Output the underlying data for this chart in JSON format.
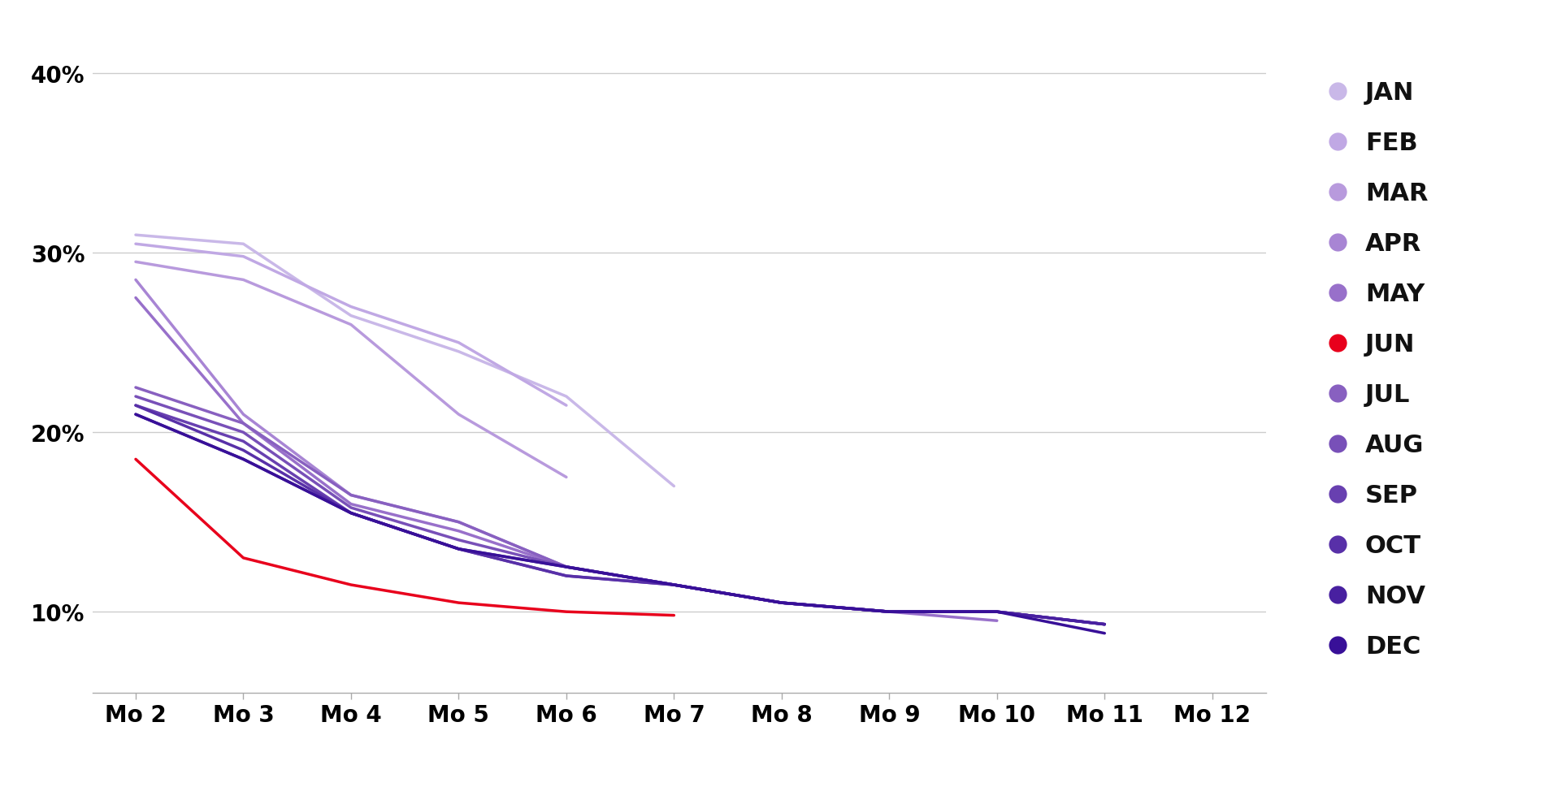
{
  "series": [
    {
      "label": "JAN",
      "color": "#c9b8e8",
      "data": [
        [
          2,
          0.31
        ],
        [
          3,
          0.305
        ],
        [
          4,
          0.265
        ],
        [
          5,
          0.245
        ],
        [
          6,
          0.22
        ],
        [
          7,
          0.17
        ]
      ]
    },
    {
      "label": "FEB",
      "color": "#c0a8e4",
      "data": [
        [
          2,
          0.305
        ],
        [
          3,
          0.298
        ],
        [
          4,
          0.27
        ],
        [
          5,
          0.25
        ],
        [
          6,
          0.215
        ]
      ]
    },
    {
      "label": "MAR",
      "color": "#b89add",
      "data": [
        [
          2,
          0.295
        ],
        [
          3,
          0.285
        ],
        [
          4,
          0.26
        ],
        [
          5,
          0.21
        ],
        [
          6,
          0.175
        ]
      ]
    },
    {
      "label": "APR",
      "color": "#a885d4",
      "data": [
        [
          2,
          0.285
        ],
        [
          3,
          0.21
        ],
        [
          4,
          0.165
        ],
        [
          5,
          0.15
        ],
        [
          6,
          0.125
        ],
        [
          7,
          0.115
        ],
        [
          8,
          0.105
        ],
        [
          9,
          0.1
        ]
      ]
    },
    {
      "label": "MAY",
      "color": "#9870ca",
      "data": [
        [
          2,
          0.275
        ],
        [
          3,
          0.205
        ],
        [
          4,
          0.16
        ],
        [
          5,
          0.145
        ],
        [
          6,
          0.125
        ],
        [
          7,
          0.115
        ],
        [
          8,
          0.105
        ],
        [
          9,
          0.1
        ],
        [
          10,
          0.095
        ]
      ]
    },
    {
      "label": "JUN",
      "color": "#e8001c",
      "data": [
        [
          2,
          0.185
        ],
        [
          3,
          0.13
        ],
        [
          4,
          0.115
        ],
        [
          5,
          0.105
        ],
        [
          6,
          0.1
        ],
        [
          7,
          0.098
        ]
      ]
    },
    {
      "label": "JUL",
      "color": "#8860c0",
      "data": [
        [
          2,
          0.225
        ],
        [
          3,
          0.205
        ],
        [
          4,
          0.165
        ],
        [
          5,
          0.15
        ],
        [
          6,
          0.125
        ],
        [
          7,
          0.115
        ],
        [
          8,
          0.105
        ],
        [
          9,
          0.1
        ],
        [
          10,
          0.1
        ],
        [
          11,
          0.093
        ]
      ]
    },
    {
      "label": "AUG",
      "color": "#7850b8",
      "data": [
        [
          2,
          0.22
        ],
        [
          3,
          0.2
        ],
        [
          4,
          0.158
        ],
        [
          5,
          0.14
        ],
        [
          6,
          0.125
        ],
        [
          7,
          0.115
        ],
        [
          8,
          0.105
        ],
        [
          9,
          0.1
        ],
        [
          10,
          0.1
        ],
        [
          11,
          0.093
        ]
      ]
    },
    {
      "label": "SEP",
      "color": "#6840b0",
      "data": [
        [
          2,
          0.215
        ],
        [
          3,
          0.195
        ],
        [
          4,
          0.155
        ],
        [
          5,
          0.135
        ],
        [
          6,
          0.12
        ],
        [
          7,
          0.115
        ],
        [
          8,
          0.105
        ],
        [
          9,
          0.1
        ],
        [
          10,
          0.1
        ],
        [
          11,
          0.093
        ]
      ]
    },
    {
      "label": "OCT",
      "color": "#5830a8",
      "data": [
        [
          2,
          0.215
        ],
        [
          3,
          0.19
        ],
        [
          4,
          0.155
        ],
        [
          5,
          0.135
        ],
        [
          6,
          0.12
        ],
        [
          7,
          0.115
        ],
        [
          8,
          0.105
        ],
        [
          9,
          0.1
        ],
        [
          10,
          0.1
        ],
        [
          11,
          0.093
        ]
      ]
    },
    {
      "label": "NOV",
      "color": "#4820a0",
      "data": [
        [
          2,
          0.21
        ],
        [
          3,
          0.185
        ],
        [
          4,
          0.155
        ],
        [
          5,
          0.135
        ],
        [
          6,
          0.125
        ],
        [
          7,
          0.115
        ],
        [
          8,
          0.105
        ],
        [
          9,
          0.1
        ],
        [
          10,
          0.1
        ],
        [
          11,
          0.093
        ]
      ]
    },
    {
      "label": "DEC",
      "color": "#381098",
      "data": [
        [
          2,
          0.21
        ],
        [
          3,
          0.185
        ],
        [
          4,
          0.155
        ],
        [
          5,
          0.135
        ],
        [
          6,
          0.125
        ],
        [
          7,
          0.115
        ],
        [
          8,
          0.105
        ],
        [
          9,
          0.1
        ],
        [
          10,
          0.1
        ],
        [
          11,
          0.088
        ]
      ]
    }
  ],
  "ylim": [
    0.055,
    0.415
  ],
  "yticks": [
    0.1,
    0.2,
    0.3,
    0.4
  ],
  "ytick_labels": [
    "10%",
    "20%",
    "30%",
    "40%"
  ],
  "xlim": [
    1.6,
    12.5
  ],
  "xticks": [
    2,
    3,
    4,
    5,
    6,
    7,
    8,
    9,
    10,
    11,
    12
  ],
  "xtick_labels": [
    "Mo 2",
    "Mo 3",
    "Mo 4",
    "Mo 5",
    "Mo 6",
    "Mo 7",
    "Mo 8",
    "Mo 9",
    "Mo 10",
    "Mo 11",
    "Mo 12"
  ],
  "background_color": "#ffffff",
  "grid_color": "#cccccc",
  "line_width": 2.5,
  "tick_fontsize": 20,
  "legend_fontsize": 22
}
